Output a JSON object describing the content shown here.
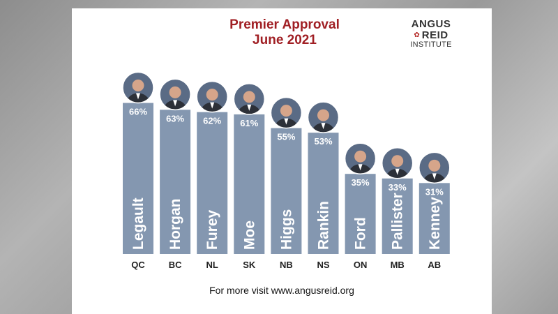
{
  "chart_data": {
    "type": "bar",
    "title": "Premier Approval",
    "subtitle": "June 2021",
    "categories": [
      "QC",
      "BC",
      "NL",
      "SK",
      "NB",
      "NS",
      "ON",
      "MB",
      "AB"
    ],
    "premiers": [
      "Legault",
      "Horgan",
      "Furey",
      "Moe",
      "Higgs",
      "Rankin",
      "Ford",
      "Pallister",
      "Kenney"
    ],
    "values": [
      66,
      63,
      62,
      61,
      55,
      53,
      35,
      33,
      31
    ],
    "value_labels": [
      "66%",
      "63%",
      "62%",
      "61%",
      "55%",
      "53%",
      "35%",
      "33%",
      "31%"
    ],
    "ylim": [
      0,
      100
    ],
    "grid": false,
    "bar_color": "#8497b0"
  },
  "logo": {
    "line1": "ANGUS",
    "line2": "REID",
    "line3": "INSTITUTE"
  },
  "footer": "For more visit www.angusreid.org"
}
